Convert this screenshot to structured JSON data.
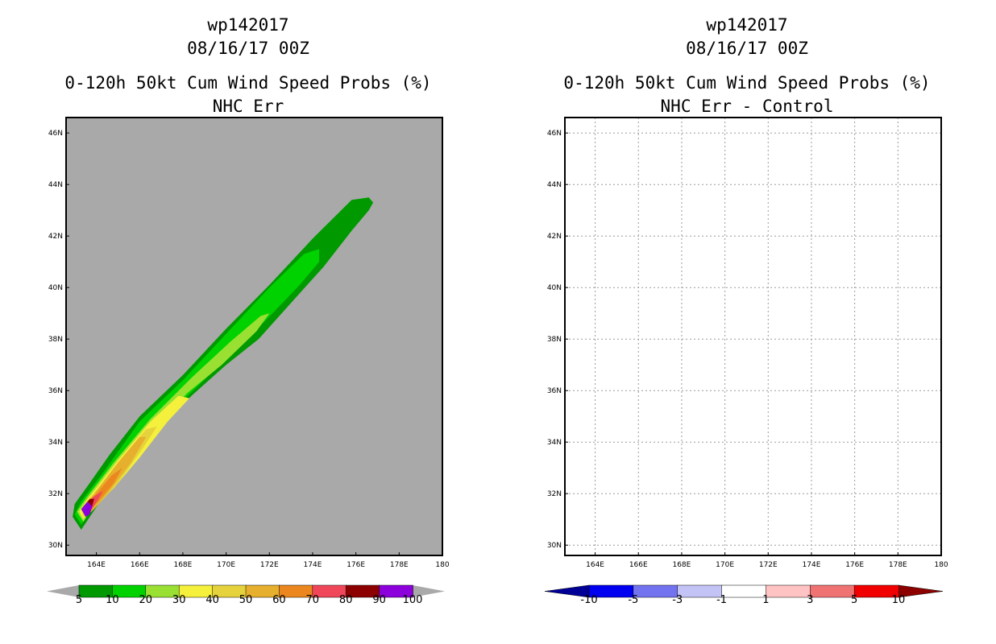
{
  "chart_data": [
    {
      "type": "heatmap",
      "storm_id": "wp142017",
      "datetime": "08/16/17 00Z",
      "title": "0-120h 50kt Cum Wind Speed Probs (%)",
      "subtitle": "NHC Err",
      "xlabel": "",
      "ylabel": "",
      "xlim": [
        162.6,
        180.0
      ],
      "ylim": [
        29.6,
        46.6
      ],
      "x_ticks": [
        "164E",
        "166E",
        "168E",
        "170E",
        "172E",
        "174E",
        "176E",
        "178E",
        "180"
      ],
      "y_ticks": [
        "30N",
        "32N",
        "34N",
        "36N",
        "38N",
        "40N",
        "42N",
        "44N",
        "46N"
      ],
      "grid": false,
      "background_color": "#a9a9a9",
      "colorbar": {
        "labels": [
          "5",
          "10",
          "20",
          "30",
          "40",
          "50",
          "60",
          "70",
          "80",
          "90",
          "100"
        ],
        "colors": [
          "#009900",
          "#00d200",
          "#99e033",
          "#f4f03c",
          "#e6d23c",
          "#e6af2d",
          "#eb871e",
          "#f0465a",
          "#8c0000",
          "#8c00dc"
        ]
      },
      "swath_levels": [
        {
          "threshold": 5,
          "color": "#009900",
          "polygon": [
            [
              163.3,
              30.6
            ],
            [
              162.9,
              31.1
            ],
            [
              163.0,
              31.6
            ],
            [
              163.6,
              32.3
            ],
            [
              164.6,
              33.5
            ],
            [
              166.0,
              35.0
            ],
            [
              168.0,
              36.6
            ],
            [
              170.0,
              38.4
            ],
            [
              172.0,
              40.1
            ],
            [
              174.0,
              41.9
            ],
            [
              175.8,
              43.4
            ],
            [
              176.6,
              43.5
            ],
            [
              176.8,
              43.3
            ],
            [
              176.6,
              43.0
            ],
            [
              175.8,
              42.2
            ],
            [
              174.5,
              40.8
            ],
            [
              173.0,
              39.4
            ],
            [
              171.5,
              38.0
            ],
            [
              170.0,
              37.0
            ],
            [
              168.4,
              35.8
            ],
            [
              166.8,
              34.4
            ],
            [
              165.4,
              33.0
            ],
            [
              164.1,
              31.6
            ]
          ]
        },
        {
          "threshold": 10,
          "color": "#00d200",
          "polygon": [
            [
              163.3,
              30.8
            ],
            [
              163.0,
              31.2
            ],
            [
              163.3,
              31.7
            ],
            [
              164.3,
              32.8
            ],
            [
              166.0,
              34.8
            ],
            [
              168.0,
              36.4
            ],
            [
              170.0,
              38.2
            ],
            [
              172.0,
              40.0
            ],
            [
              173.6,
              41.3
            ],
            [
              174.3,
              41.5
            ],
            [
              174.3,
              41.0
            ],
            [
              173.4,
              40.1
            ],
            [
              171.8,
              38.7
            ],
            [
              170.2,
              37.4
            ],
            [
              168.6,
              36.1
            ],
            [
              167.0,
              34.8
            ],
            [
              165.3,
              33.0
            ],
            [
              164.0,
              31.7
            ]
          ]
        },
        {
          "threshold": 20,
          "color": "#99e033",
          "polygon": [
            [
              163.4,
              30.9
            ],
            [
              163.1,
              31.3
            ],
            [
              163.5,
              31.8
            ],
            [
              164.8,
              33.2
            ],
            [
              166.5,
              34.9
            ],
            [
              168.4,
              36.5
            ],
            [
              170.2,
              37.9
            ],
            [
              171.6,
              38.9
            ],
            [
              172.0,
              39.0
            ],
            [
              171.4,
              38.3
            ],
            [
              169.8,
              37.0
            ],
            [
              168.2,
              35.9
            ],
            [
              166.6,
              34.5
            ],
            [
              165.2,
              32.9
            ],
            [
              163.9,
              31.6
            ]
          ]
        },
        {
          "threshold": 30,
          "color": "#f4f03c",
          "polygon": [
            [
              163.4,
              31.0
            ],
            [
              163.2,
              31.3
            ],
            [
              163.6,
              31.8
            ],
            [
              165.0,
              33.3
            ],
            [
              166.5,
              34.8
            ],
            [
              167.8,
              35.8
            ],
            [
              168.3,
              35.7
            ],
            [
              167.3,
              34.8
            ],
            [
              166.0,
              33.4
            ],
            [
              164.8,
              32.2
            ],
            [
              163.8,
              31.5
            ]
          ]
        },
        {
          "threshold": 40,
          "color": "#e6d23c",
          "polygon": [
            [
              163.4,
              31.1
            ],
            [
              163.3,
              31.4
            ],
            [
              163.8,
              31.9
            ],
            [
              165.0,
              33.2
            ],
            [
              166.3,
              34.5
            ],
            [
              166.8,
              34.6
            ],
            [
              166.1,
              33.7
            ],
            [
              165.0,
              32.4
            ],
            [
              164.0,
              31.5
            ]
          ]
        },
        {
          "threshold": 50,
          "color": "#e6af2d",
          "polygon": [
            [
              163.5,
              31.1
            ],
            [
              163.3,
              31.4
            ],
            [
              163.9,
              32.0
            ],
            [
              165.0,
              33.2
            ],
            [
              166.0,
              34.2
            ],
            [
              166.3,
              34.2
            ],
            [
              165.6,
              33.2
            ],
            [
              164.6,
              32.1
            ],
            [
              163.9,
              31.4
            ]
          ]
        },
        {
          "threshold": 60,
          "color": "#eb871e",
          "polygon": [
            [
              163.5,
              31.2
            ],
            [
              163.4,
              31.5
            ],
            [
              164.0,
              32.0
            ],
            [
              164.7,
              32.7
            ],
            [
              165.2,
              33.0
            ],
            [
              164.8,
              32.4
            ],
            [
              164.1,
              31.7
            ]
          ]
        },
        {
          "threshold": 70,
          "color": "#f0465a",
          "polygon": [
            [
              163.5,
              31.1
            ],
            [
              163.4,
              31.5
            ],
            [
              163.9,
              31.9
            ],
            [
              164.3,
              32.1
            ],
            [
              164.1,
              31.8
            ],
            [
              163.8,
              31.4
            ]
          ]
        },
        {
          "threshold": 80,
          "color": "#8c0000",
          "polygon": [
            [
              163.5,
              31.1
            ],
            [
              163.4,
              31.5
            ],
            [
              163.7,
              31.8
            ],
            [
              163.9,
              31.8
            ],
            [
              163.8,
              31.5
            ],
            [
              163.7,
              31.2
            ]
          ]
        },
        {
          "threshold": 90,
          "color": "#8c00dc",
          "polygon": [
            [
              163.5,
              31.1
            ],
            [
              163.3,
              31.4
            ],
            [
              163.6,
              31.7
            ],
            [
              163.8,
              31.5
            ],
            [
              163.7,
              31.2
            ]
          ]
        }
      ]
    },
    {
      "type": "heatmap",
      "storm_id": "wp142017",
      "datetime": "08/16/17 00Z",
      "title": "0-120h 50kt Cum Wind Speed Probs (%)",
      "subtitle": "NHC Err - Control",
      "xlabel": "",
      "ylabel": "",
      "xlim": [
        162.6,
        180.0
      ],
      "ylim": [
        29.6,
        46.6
      ],
      "x_ticks": [
        "164E",
        "166E",
        "168E",
        "170E",
        "172E",
        "174E",
        "176E",
        "178E",
        "180"
      ],
      "y_ticks": [
        "30N",
        "32N",
        "34N",
        "36N",
        "38N",
        "40N",
        "42N",
        "44N",
        "46N"
      ],
      "grid": true,
      "background_color": "#ffffff",
      "colorbar": {
        "labels": [
          "-10",
          "-5",
          "-3",
          "-1",
          "1",
          "3",
          "5",
          "10"
        ],
        "colors": [
          "#000096",
          "#0000f0",
          "#7373f0",
          "#c3c3f5",
          "#ffffff",
          "#ffc3c3",
          "#f07373",
          "#f00000",
          "#8c0000"
        ]
      },
      "swath_levels": []
    }
  ]
}
